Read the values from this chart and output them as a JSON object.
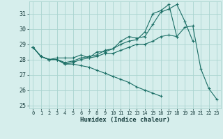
{
  "title": "",
  "xlabel": "Humidex (Indice chaleur)",
  "xlim": [
    -0.5,
    23.5
  ],
  "ylim": [
    24.8,
    31.8
  ],
  "yticks": [
    25,
    26,
    27,
    28,
    29,
    30,
    31
  ],
  "xticks": [
    0,
    1,
    2,
    3,
    4,
    5,
    6,
    7,
    8,
    9,
    10,
    11,
    12,
    13,
    14,
    15,
    16,
    17,
    18,
    19,
    20,
    21,
    22,
    23
  ],
  "bg_color": "#d6eeec",
  "grid_color": "#aad4d0",
  "line_color": "#1a6e65",
  "lines": [
    [
      28.8,
      28.2,
      28.0,
      28.0,
      27.7,
      27.8,
      28.0,
      28.1,
      28.2,
      28.4,
      28.4,
      28.6,
      28.8,
      29.0,
      29.0,
      29.2,
      29.5,
      29.6,
      29.5,
      30.1,
      30.2,
      27.4,
      26.1,
      25.4
    ],
    [
      28.8,
      28.2,
      28.0,
      28.0,
      27.8,
      27.9,
      28.1,
      28.2,
      28.3,
      28.6,
      28.7,
      29.2,
      29.5,
      29.4,
      29.5,
      30.3,
      31.1,
      31.3,
      31.6,
      30.5,
      29.2,
      null,
      null,
      null
    ],
    [
      28.8,
      28.2,
      28.0,
      28.1,
      28.1,
      28.1,
      28.3,
      28.1,
      28.5,
      28.5,
      28.7,
      29.0,
      29.2,
      29.3,
      29.8,
      31.0,
      31.2,
      31.6,
      29.5,
      null,
      null,
      null,
      null,
      null
    ],
    [
      28.8,
      28.2,
      28.0,
      28.0,
      27.7,
      27.7,
      27.6,
      27.5,
      27.3,
      27.1,
      26.9,
      26.7,
      26.5,
      26.2,
      26.0,
      25.8,
      25.6,
      null,
      null,
      null,
      null,
      null,
      null,
      null
    ]
  ]
}
